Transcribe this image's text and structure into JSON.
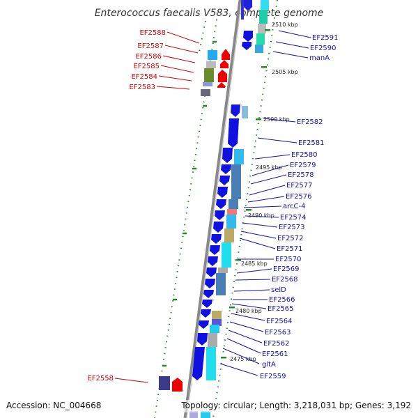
{
  "title": "Enterococcus faecalis V583, complete genome",
  "footer": {
    "accession": "Accession: NC_004668",
    "topology": "Topology: circular; Length: 3,218,031 bp; Genes: 3,192"
  },
  "colors": {
    "red_label": "#cc0000",
    "blue_label": "#1010b0",
    "backbone": "#888888",
    "tick": "#228822"
  },
  "kbp_labels": [
    "2510 kbp",
    "2505 kbp",
    "2500 kbp",
    "2495 kbp",
    "2490 kbp",
    "2485 kbp",
    "2480 kbp",
    "2475 kbp"
  ],
  "left_labels": [
    "EF2588",
    "EF2587",
    "EF2586",
    "EF2585",
    "EF2584",
    "EF2583",
    "EF2558"
  ],
  "right_labels": [
    "EF2591",
    "EF2590",
    "manA",
    "EF2582",
    "EF2581",
    "EF2580",
    "EF2579",
    "EF2578",
    "EF2577",
    "EF2576",
    "arcC-4",
    "EF2574",
    "EF2573",
    "EF2572",
    "EF2571",
    "EF2570",
    "EF2569",
    "EF2568",
    "selD",
    "EF2566",
    "EF2565",
    "EF2564",
    "EF2563",
    "EF2562",
    "EF2561",
    "gltA",
    "EF2559"
  ]
}
